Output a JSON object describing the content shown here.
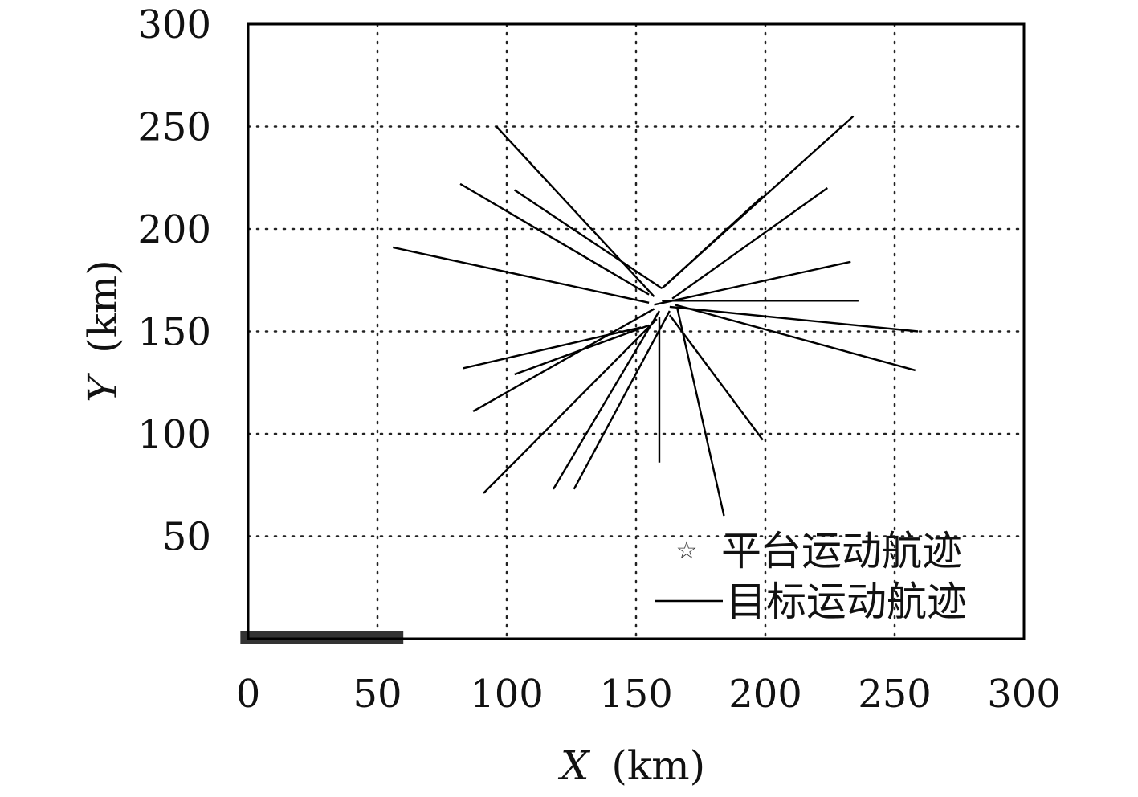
{
  "chart_data": {
    "type": "line",
    "title": "",
    "xlabel_var": "X",
    "xlabel_unit": "(km)",
    "ylabel_var": "Y",
    "ylabel_unit": "(km)",
    "xlim": [
      0,
      300
    ],
    "ylim": [
      0,
      300
    ],
    "x_ticks": [
      0,
      50,
      100,
      150,
      200,
      250,
      300
    ],
    "y_ticks": [
      50,
      100,
      150,
      200,
      250,
      300
    ],
    "x_tick_labels": [
      "0",
      "50",
      "100",
      "150",
      "200",
      "250",
      "300"
    ],
    "y_tick_labels": [
      "50",
      "100",
      "150",
      "200",
      "250",
      "300"
    ],
    "grid": true,
    "legend_position": "bottom-right",
    "legend": {
      "platform_label": "平台运动航迹",
      "target_label": "目标运动航迹"
    },
    "platform_track": {
      "name": "平台运动航迹",
      "x": [
        -3,
        60
      ],
      "y": [
        0,
        0
      ],
      "color": "#333333"
    },
    "legend_marker_symbol": "☆",
    "target_tracks": [
      {
        "x": [
          96,
          157
        ],
        "y": [
          250,
          167
        ]
      },
      {
        "x": [
          103,
          160
        ],
        "y": [
          219,
          171
        ]
      },
      {
        "x": [
          82,
          155
        ],
        "y": [
          222,
          168
        ]
      },
      {
        "x": [
          56,
          155
        ],
        "y": [
          191,
          164
        ]
      },
      {
        "x": [
          157,
          233
        ],
        "y": [
          163,
          184
        ]
      },
      {
        "x": [
          160,
          236
        ],
        "y": [
          165,
          165
        ]
      },
      {
        "x": [
          163,
          259
        ],
        "y": [
          162,
          150
        ]
      },
      {
        "x": [
          165,
          258
        ],
        "y": [
          163,
          131
        ]
      },
      {
        "x": [
          160,
          234
        ],
        "y": [
          171,
          255
        ]
      },
      {
        "x": [
          164,
          224
        ],
        "y": [
          166,
          220
        ]
      },
      {
        "x": [
          161,
          199
        ],
        "y": [
          172,
          216
        ]
      },
      {
        "x": [
          83,
          152
        ],
        "y": [
          132,
          152
        ]
      },
      {
        "x": [
          103,
          155
        ],
        "y": [
          129,
          153
        ]
      },
      {
        "x": [
          87,
          157
        ],
        "y": [
          111,
          161
        ]
      },
      {
        "x": [
          91,
          158
        ],
        "y": [
          71,
          156
        ]
      },
      {
        "x": [
          118,
          159
        ],
        "y": [
          73,
          160
        ]
      },
      {
        "x": [
          126,
          163
        ],
        "y": [
          73,
          160
        ]
      },
      {
        "x": [
          159,
          159
        ],
        "y": [
          86,
          157
        ]
      },
      {
        "x": [
          166,
          184
        ],
        "y": [
          161,
          60
        ]
      },
      {
        "x": [
          163,
          199
        ],
        "y": [
          158,
          97
        ]
      }
    ],
    "target_color": "#000000"
  }
}
